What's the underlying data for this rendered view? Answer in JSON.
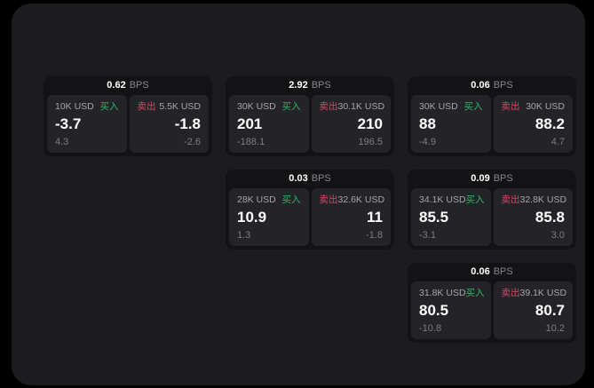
{
  "labels": {
    "bps_suffix": "BPS",
    "buy": "买入",
    "sell": "卖出"
  },
  "colors": {
    "background": "#000000",
    "panel": "#1c1c1e",
    "card": "#131315",
    "side_panel": "#242428",
    "buy_green": "#32b469",
    "sell_red": "#cf4a67",
    "primary_text": "#ffffff",
    "muted_text": "#86868b"
  },
  "cards": [
    {
      "bps": "0.62",
      "buy": {
        "amount": "10K USD",
        "value": "-3.7",
        "sub": "4.3"
      },
      "sell": {
        "amount": "5.5K USD",
        "value": "-1.8",
        "sub": "-2.6"
      }
    },
    {
      "bps": "2.92",
      "buy": {
        "amount": "30K USD",
        "value": "201",
        "sub": "-188.1"
      },
      "sell": {
        "amount": "30.1K USD",
        "value": "210",
        "sub": "196.5"
      }
    },
    {
      "bps": "0.06",
      "buy": {
        "amount": "30K USD",
        "value": "88",
        "sub": "-4.9"
      },
      "sell": {
        "amount": "30K USD",
        "value": "88.2",
        "sub": "4.7"
      }
    },
    {
      "bps": "0.03",
      "buy": {
        "amount": "28K USD",
        "value": "10.9",
        "sub": "1.3"
      },
      "sell": {
        "amount": "32.6K USD",
        "value": "11",
        "sub": "-1.8"
      }
    },
    {
      "bps": "0.09",
      "buy": {
        "amount": "34.1K USD",
        "value": "85.5",
        "sub": "-3.1"
      },
      "sell": {
        "amount": "32.8K USD",
        "value": "85.8",
        "sub": "3.0"
      }
    },
    {
      "bps": "0.06",
      "buy": {
        "amount": "31.8K USD",
        "value": "80.5",
        "sub": "-10.8"
      },
      "sell": {
        "amount": "39.1K USD",
        "value": "80.7",
        "sub": "10.2"
      }
    }
  ]
}
